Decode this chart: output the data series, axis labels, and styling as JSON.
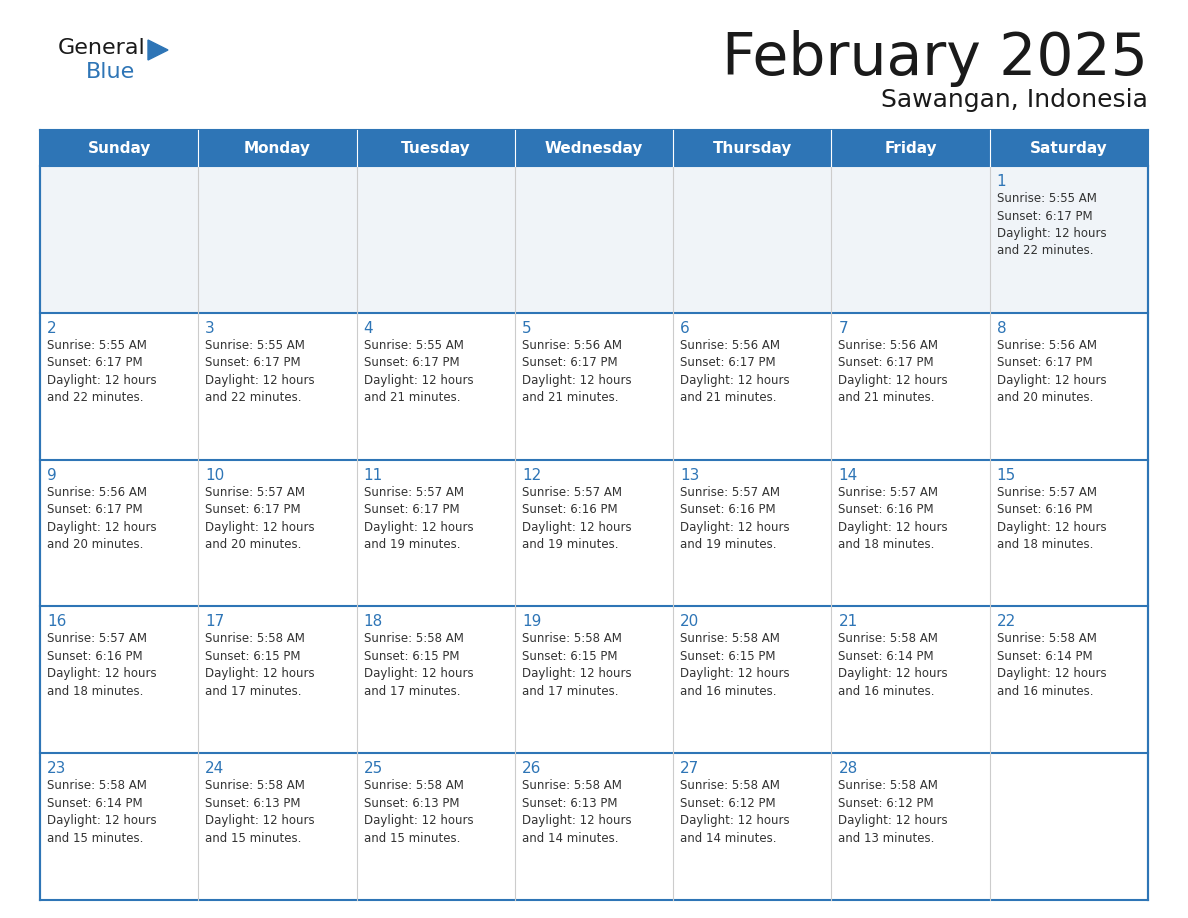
{
  "title": "February 2025",
  "subtitle": "Sawangan, Indonesia",
  "header_bg": "#2E75B6",
  "header_text_color": "#FFFFFF",
  "cell_bg_white": "#FFFFFF",
  "cell_bg_light": "#F0F4F8",
  "border_color": "#2E75B6",
  "grid_line_color": "#CCCCCC",
  "title_color": "#1a1a1a",
  "day_number_color": "#2E75B6",
  "cell_text_color": "#333333",
  "days_of_week": [
    "Sunday",
    "Monday",
    "Tuesday",
    "Wednesday",
    "Thursday",
    "Friday",
    "Saturday"
  ],
  "calendar_data": [
    [
      null,
      null,
      null,
      null,
      null,
      null,
      {
        "day": 1,
        "sunrise": "5:55 AM",
        "sunset": "6:17 PM",
        "daylight": "12 hours\nand 22 minutes."
      }
    ],
    [
      {
        "day": 2,
        "sunrise": "5:55 AM",
        "sunset": "6:17 PM",
        "daylight": "12 hours\nand 22 minutes."
      },
      {
        "day": 3,
        "sunrise": "5:55 AM",
        "sunset": "6:17 PM",
        "daylight": "12 hours\nand 22 minutes."
      },
      {
        "day": 4,
        "sunrise": "5:55 AM",
        "sunset": "6:17 PM",
        "daylight": "12 hours\nand 21 minutes."
      },
      {
        "day": 5,
        "sunrise": "5:56 AM",
        "sunset": "6:17 PM",
        "daylight": "12 hours\nand 21 minutes."
      },
      {
        "day": 6,
        "sunrise": "5:56 AM",
        "sunset": "6:17 PM",
        "daylight": "12 hours\nand 21 minutes."
      },
      {
        "day": 7,
        "sunrise": "5:56 AM",
        "sunset": "6:17 PM",
        "daylight": "12 hours\nand 21 minutes."
      },
      {
        "day": 8,
        "sunrise": "5:56 AM",
        "sunset": "6:17 PM",
        "daylight": "12 hours\nand 20 minutes."
      }
    ],
    [
      {
        "day": 9,
        "sunrise": "5:56 AM",
        "sunset": "6:17 PM",
        "daylight": "12 hours\nand 20 minutes."
      },
      {
        "day": 10,
        "sunrise": "5:57 AM",
        "sunset": "6:17 PM",
        "daylight": "12 hours\nand 20 minutes."
      },
      {
        "day": 11,
        "sunrise": "5:57 AM",
        "sunset": "6:17 PM",
        "daylight": "12 hours\nand 19 minutes."
      },
      {
        "day": 12,
        "sunrise": "5:57 AM",
        "sunset": "6:16 PM",
        "daylight": "12 hours\nand 19 minutes."
      },
      {
        "day": 13,
        "sunrise": "5:57 AM",
        "sunset": "6:16 PM",
        "daylight": "12 hours\nand 19 minutes."
      },
      {
        "day": 14,
        "sunrise": "5:57 AM",
        "sunset": "6:16 PM",
        "daylight": "12 hours\nand 18 minutes."
      },
      {
        "day": 15,
        "sunrise": "5:57 AM",
        "sunset": "6:16 PM",
        "daylight": "12 hours\nand 18 minutes."
      }
    ],
    [
      {
        "day": 16,
        "sunrise": "5:57 AM",
        "sunset": "6:16 PM",
        "daylight": "12 hours\nand 18 minutes."
      },
      {
        "day": 17,
        "sunrise": "5:58 AM",
        "sunset": "6:15 PM",
        "daylight": "12 hours\nand 17 minutes."
      },
      {
        "day": 18,
        "sunrise": "5:58 AM",
        "sunset": "6:15 PM",
        "daylight": "12 hours\nand 17 minutes."
      },
      {
        "day": 19,
        "sunrise": "5:58 AM",
        "sunset": "6:15 PM",
        "daylight": "12 hours\nand 17 minutes."
      },
      {
        "day": 20,
        "sunrise": "5:58 AM",
        "sunset": "6:15 PM",
        "daylight": "12 hours\nand 16 minutes."
      },
      {
        "day": 21,
        "sunrise": "5:58 AM",
        "sunset": "6:14 PM",
        "daylight": "12 hours\nand 16 minutes."
      },
      {
        "day": 22,
        "sunrise": "5:58 AM",
        "sunset": "6:14 PM",
        "daylight": "12 hours\nand 16 minutes."
      }
    ],
    [
      {
        "day": 23,
        "sunrise": "5:58 AM",
        "sunset": "6:14 PM",
        "daylight": "12 hours\nand 15 minutes."
      },
      {
        "day": 24,
        "sunrise": "5:58 AM",
        "sunset": "6:13 PM",
        "daylight": "12 hours\nand 15 minutes."
      },
      {
        "day": 25,
        "sunrise": "5:58 AM",
        "sunset": "6:13 PM",
        "daylight": "12 hours\nand 15 minutes."
      },
      {
        "day": 26,
        "sunrise": "5:58 AM",
        "sunset": "6:13 PM",
        "daylight": "12 hours\nand 14 minutes."
      },
      {
        "day": 27,
        "sunrise": "5:58 AM",
        "sunset": "6:12 PM",
        "daylight": "12 hours\nand 14 minutes."
      },
      {
        "day": 28,
        "sunrise": "5:58 AM",
        "sunset": "6:12 PM",
        "daylight": "12 hours\nand 13 minutes."
      },
      null
    ]
  ],
  "logo_general_color": "#1a1a1a",
  "logo_blue_color": "#2E75B6",
  "logo_triangle_color": "#2E75B6"
}
